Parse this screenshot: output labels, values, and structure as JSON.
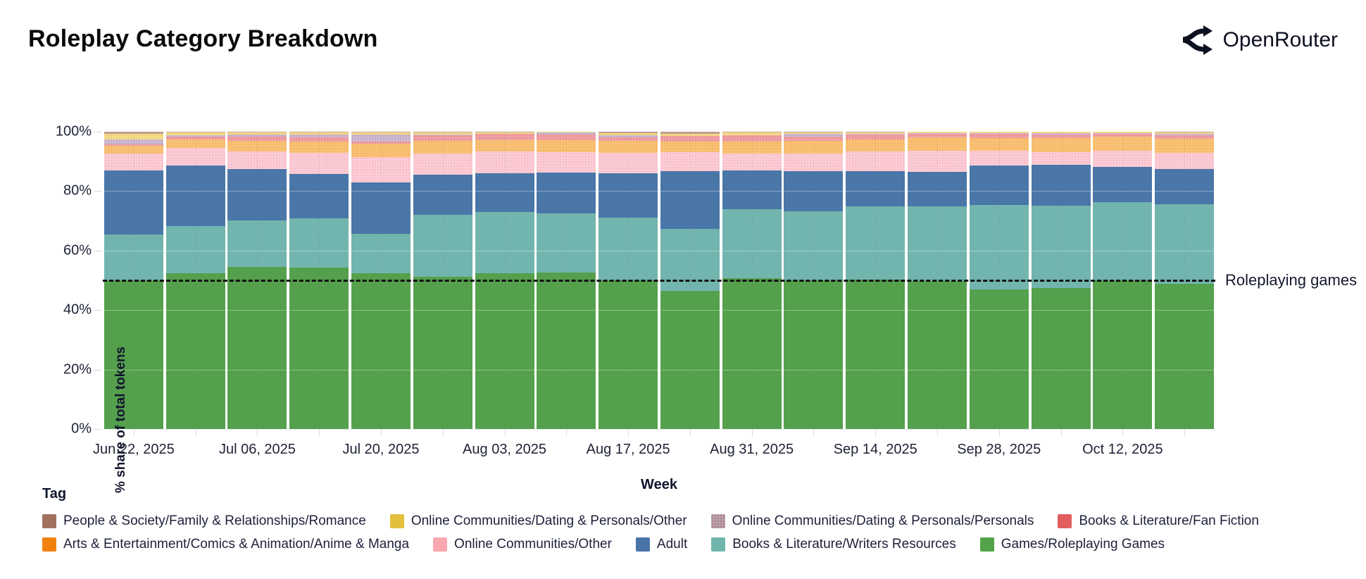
{
  "header": {
    "title": "Roleplay Category Breakdown",
    "brand": "OpenRouter"
  },
  "axes": {
    "y_title": "% share of total tokens",
    "x_title": "Week",
    "y_tick_labels": [
      "0%",
      "20%",
      "40%",
      "60%",
      "80%",
      "100%"
    ],
    "x_tick_labels": [
      "Jun 22, 2025",
      "Jul 06, 2025",
      "Jul 20, 2025",
      "Aug 03, 2025",
      "Aug 17, 2025",
      "Aug 31, 2025",
      "Sep 14, 2025",
      "Sep 28, 2025",
      "Oct 12, 2025"
    ]
  },
  "annotation": {
    "label": "Roleplaying games",
    "value": 50
  },
  "chart_data": {
    "type": "bar",
    "stacking": "percent",
    "title": "Roleplay Category Breakdown",
    "xlabel": "Week",
    "ylabel": "% share of total tokens",
    "ylim": [
      0,
      100
    ],
    "grid": "subtle horizontal at 20% steps",
    "legend_position": "bottom",
    "ref_line": {
      "y": 50,
      "label": "Roleplaying games",
      "style": "black dashed"
    },
    "x": [
      "Jun 22, 2025",
      "Jun 29, 2025",
      "Jul 06, 2025",
      "Jul 13, 2025",
      "Jul 20, 2025",
      "Jul 27, 2025",
      "Aug 03, 2025",
      "Aug 10, 2025",
      "Aug 17, 2025",
      "Aug 24, 2025",
      "Aug 31, 2025",
      "Sep 07, 2025",
      "Sep 14, 2025",
      "Sep 21, 2025",
      "Sep 28, 2025",
      "Oct 05, 2025",
      "Oct 12, 2025",
      "Oct 19, 2025"
    ],
    "x_labels_shown_every": 2,
    "series_bottom_to_top": [
      {
        "name": "Games/Roleplaying Games",
        "color": "#54a04c",
        "legend_color": "#53a349",
        "values": [
          50.1,
          52.3,
          54.4,
          54.3,
          52.3,
          51.1,
          52.3,
          52.5,
          49.9,
          46.5,
          50.8,
          50.1,
          50.2,
          49.8,
          46.8,
          47.3,
          49.9,
          48.8
        ]
      },
      {
        "name": "Books & Literature/Writers Resources",
        "color": "#72b5ae",
        "legend_color": "#70b5ab",
        "values": [
          15.2,
          15.9,
          15.7,
          16.5,
          13.3,
          20.9,
          20.6,
          20.1,
          21.1,
          20.9,
          23.1,
          23.2,
          24.6,
          25.0,
          28.5,
          27.8,
          26.3,
          26.8
        ]
      },
      {
        "name": "Adult",
        "color": "#4a76a8",
        "legend_color": "#4a74a8",
        "values": [
          21.6,
          20.4,
          17.3,
          15.0,
          17.3,
          13.5,
          13.1,
          13.6,
          15.1,
          19.4,
          13.1,
          13.4,
          11.9,
          11.6,
          13.3,
          13.7,
          12.0,
          11.8
        ]
      },
      {
        "name": "Online Communities/Other",
        "color": "#fbcdd6",
        "legend_color": "#f9a7b0",
        "dot_color": "rgba(244,122,140,0.30)",
        "values": [
          5.7,
          5.9,
          6.0,
          7.2,
          8.5,
          7.2,
          7.3,
          7.0,
          6.7,
          6.3,
          5.7,
          6.0,
          6.6,
          7.3,
          4.9,
          4.4,
          5.3,
          5.6
        ]
      },
      {
        "name": "Arts & Entertainment/Comics & Animation/Anime & Manga",
        "color": "#f8c277",
        "legend_color": "#f0810f",
        "dot_color": "rgba(240,129,15,0.28)",
        "values": [
          2.7,
          2.8,
          3.5,
          3.7,
          4.6,
          4.2,
          3.9,
          3.9,
          4.1,
          3.5,
          4.1,
          4.3,
          4.2,
          4.4,
          4.4,
          4.7,
          4.8,
          4.7
        ]
      },
      {
        "name": "Books & Literature/Fan Fiction",
        "color": "#efa2a7",
        "legend_color": "#e25d5d",
        "dot_color": "rgba(224,77,77,0.32)",
        "values": [
          0.4,
          1.0,
          1.5,
          1.5,
          0.8,
          2.0,
          2.1,
          2.0,
          1.2,
          1.9,
          2.0,
          1.4,
          1.6,
          1.3,
          1.4,
          1.2,
          1.0,
          1.2
        ]
      },
      {
        "name": "Online Communities/Dating & Personals/Personals",
        "color": "#cbbcd4",
        "legend_color": "#b3a2ad",
        "dot_color": "rgba(200,80,100,0.30)",
        "values": [
          1.7,
          0.5,
          0.6,
          0.8,
          2.2,
          0.1,
          0.1,
          0.6,
          0.6,
          0.1,
          0.1,
          1.0,
          0.2,
          0.1,
          0.3,
          0.5,
          0.2,
          0.4
        ]
      },
      {
        "name": "Online Communities/Dating & Personals/Other",
        "color": "#f5dc8b",
        "legend_color": "#e2bf3c",
        "dot_color": "rgba(212,175,55,0.35)",
        "values": [
          1.9,
          0.9,
          0.7,
          0.7,
          0.7,
          0.8,
          0.4,
          0.2,
          0.8,
          0.8,
          0.9,
          0.4,
          0.5,
          0.4,
          0.3,
          0.3,
          0.4,
          0.5
        ]
      },
      {
        "name": "People & Society/Family & Relationships/Romance",
        "color": "#c3a396",
        "legend_color": "#a1715f",
        "dot_color": "rgba(140,90,70,0.30)",
        "values": [
          0.7,
          0.3,
          0.3,
          0.3,
          0.3,
          0.2,
          0.2,
          0.1,
          0.5,
          0.6,
          0.2,
          0.2,
          0.2,
          0.1,
          0.1,
          0.1,
          0.1,
          0.2
        ]
      }
    ]
  },
  "legend": {
    "title": "Tag",
    "rows": [
      [
        "People & Society/Family & Relationships/Romance",
        "Online Communities/Dating & Personals/Other",
        "Online Communities/Dating & Personals/Personals",
        "Books & Literature/Fan Fiction"
      ],
      [
        "Arts & Entertainment/Comics & Animation/Anime & Manga",
        "Online Communities/Other",
        "Adult",
        "Books & Literature/Writers Resources",
        "Games/Roleplaying Games"
      ]
    ]
  }
}
